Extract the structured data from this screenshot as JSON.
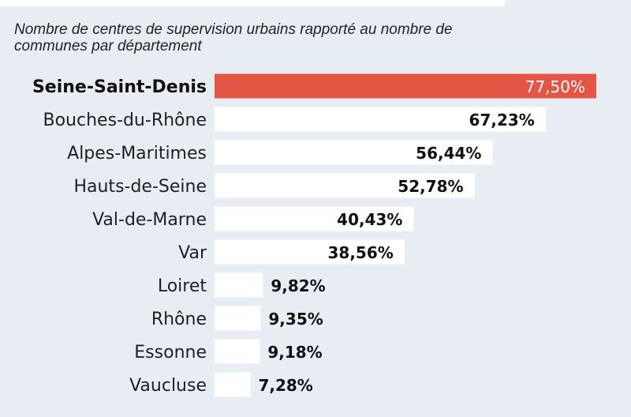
{
  "chart_data": {
    "type": "bar",
    "orientation": "horizontal",
    "subtitle": "Nombre de centres de supervision urbains rapporté au nombre de communes par département",
    "categories": [
      "Seine-Saint-Denis",
      "Bouches-du-Rhône",
      "Alpes-Maritimes",
      "Hauts-de-Seine",
      "Val-de-Marne",
      "Var",
      "Loiret",
      "Rhône",
      "Essonne",
      "Vaucluse"
    ],
    "values": [
      77.5,
      67.23,
      56.44,
      52.78,
      40.43,
      38.56,
      9.82,
      9.35,
      9.18,
      7.28
    ],
    "value_labels": [
      "77,50%",
      "67,23%",
      "56,44%",
      "52,78%",
      "40,43%",
      "38,56%",
      "9,82%",
      "9,35%",
      "9,18%",
      "7,28%"
    ],
    "highlight_index": 0,
    "xlim": [
      0,
      77.5
    ],
    "grid": false,
    "colors": {
      "background": "#e8edf4",
      "bar": "#ffffff",
      "highlight_bar": "#e45545"
    }
  }
}
